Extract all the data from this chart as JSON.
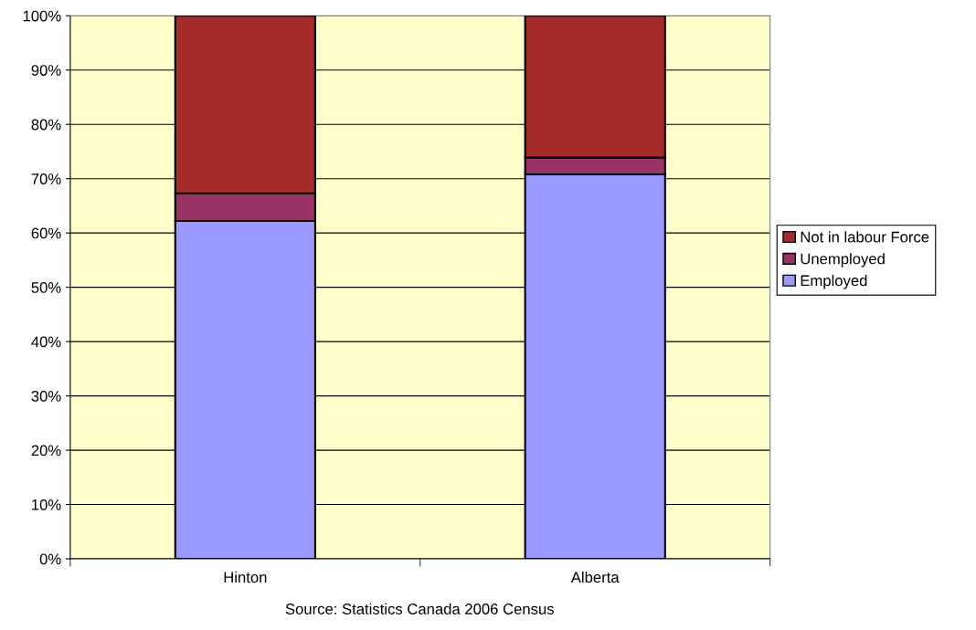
{
  "chart_data": {
    "type": "bar",
    "stacked": true,
    "categories": [
      "Hinton",
      "Alberta"
    ],
    "series": [
      {
        "name": "Employed",
        "color": "#9999ff",
        "values": [
          62.2,
          70.8
        ]
      },
      {
        "name": "Unemployed",
        "color": "#993366",
        "values": [
          5.1,
          3.1
        ]
      },
      {
        "name": "Not in labour Force",
        "color": "#a52a2a",
        "values": [
          32.7,
          26.1
        ]
      }
    ],
    "ylim": [
      0,
      100
    ],
    "yticks": [
      {
        "value": 0,
        "label": "0%"
      },
      {
        "value": 10,
        "label": "10%"
      },
      {
        "value": 20,
        "label": "20%"
      },
      {
        "value": 30,
        "label": "30%"
      },
      {
        "value": 40,
        "label": "40%"
      },
      {
        "value": 50,
        "label": "50%"
      },
      {
        "value": 60,
        "label": "60%"
      },
      {
        "value": 70,
        "label": "70%"
      },
      {
        "value": 80,
        "label": "80%"
      },
      {
        "value": 90,
        "label": "90%"
      },
      {
        "value": 100,
        "label": "100%"
      }
    ],
    "grid": "y",
    "legend": "right",
    "annotations": [
      "Source: Statistics Canada 2006 Census"
    ]
  }
}
